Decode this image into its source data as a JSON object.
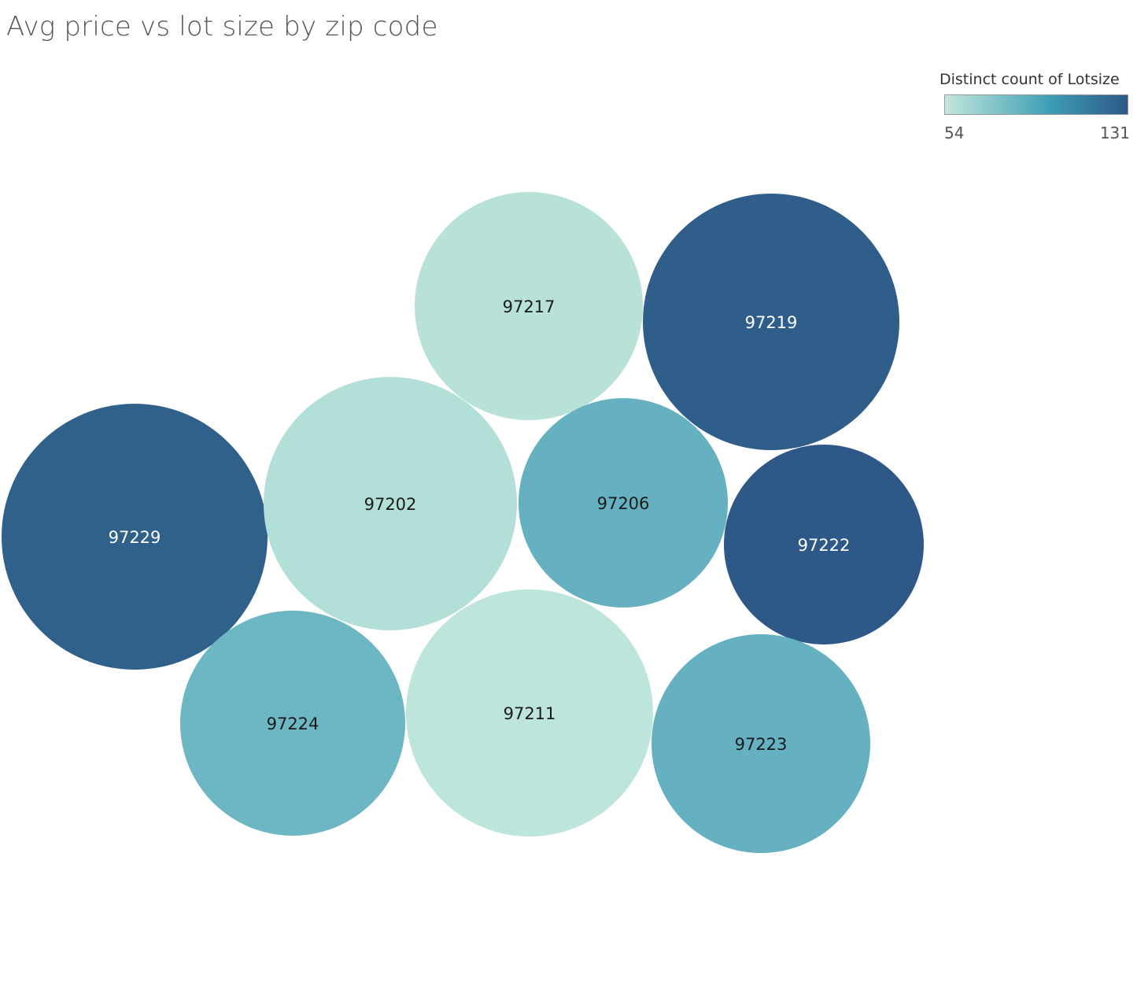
{
  "chart_data": {
    "type": "bubble",
    "title": "Avg price vs lot size by zip code",
    "legend": {
      "title": "Distinct count of Lotsize",
      "min": 54,
      "max": 131,
      "min_label": "54",
      "max_label": "131",
      "color_low": "#c2e6dc",
      "color_mid": "#3d9db5",
      "color_high": "#2d5887",
      "placement": "top-right"
    },
    "bubbles": [
      {
        "zip": "97217",
        "distinct_count_lotsize": 56,
        "color": "#b8e2d8",
        "label_color": "#1a1a1a"
      },
      {
        "zip": "97219",
        "distinct_count_lotsize": 128,
        "color": "#2f5e8a",
        "label_color": "#ffffff"
      },
      {
        "zip": "97229",
        "distinct_count_lotsize": 127,
        "color": "#30618b",
        "label_color": "#ffffff"
      },
      {
        "zip": "97202",
        "distinct_count_lotsize": 60,
        "color": "#b2dfd8",
        "label_color": "#1a1a1a"
      },
      {
        "zip": "97206",
        "distinct_count_lotsize": 88,
        "color": "#65b0c1",
        "label_color": "#1a1a1a"
      },
      {
        "zip": "97222",
        "distinct_count_lotsize": 131,
        "color": "#2d5887",
        "label_color": "#ffffff"
      },
      {
        "zip": "97224",
        "distinct_count_lotsize": 85,
        "color": "#6db6c4",
        "label_color": "#1a1a1a"
      },
      {
        "zip": "97211",
        "distinct_count_lotsize": 54,
        "color": "#bee5db",
        "label_color": "#1a1a1a"
      },
      {
        "zip": "97223",
        "distinct_count_lotsize": 88,
        "color": "#65b0c1",
        "label_color": "#1a1a1a"
      }
    ]
  }
}
